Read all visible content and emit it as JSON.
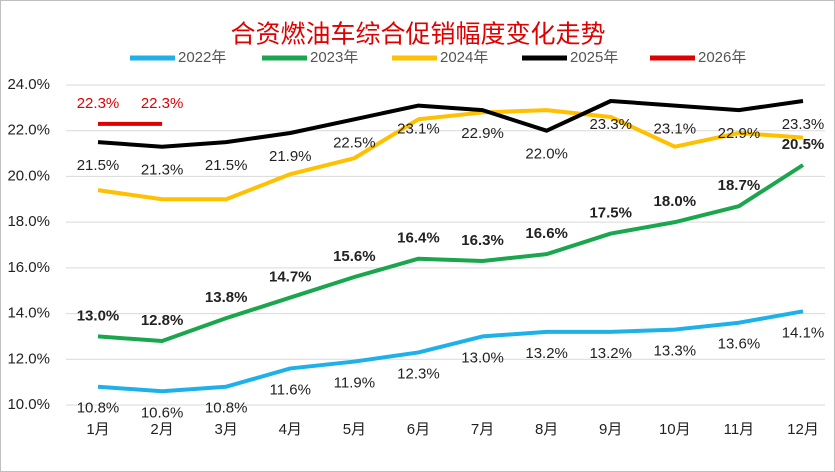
{
  "chart_data": {
    "type": "line",
    "title": "合资燃油车综合促销幅度变化走势",
    "categories": [
      "1月",
      "2月",
      "3月",
      "4月",
      "5月",
      "6月",
      "7月",
      "8月",
      "9月",
      "10月",
      "11月",
      "12月"
    ],
    "ylim": [
      10,
      24
    ],
    "yticks": [
      {
        "value": 10,
        "label": "10.0%"
      },
      {
        "value": 12,
        "label": "12.0%"
      },
      {
        "value": 14,
        "label": "14.0%"
      },
      {
        "value": 16,
        "label": "16.0%"
      },
      {
        "value": 18,
        "label": "18.0%"
      },
      {
        "value": 20,
        "label": "20.0%"
      },
      {
        "value": 22,
        "label": "22.0%"
      },
      {
        "value": 24,
        "label": "24.0%"
      }
    ],
    "grid": true,
    "legend": "top",
    "series": [
      {
        "name": "2022年",
        "color": "#1eb1e9",
        "values": [
          10.8,
          10.6,
          10.8,
          11.6,
          11.9,
          12.3,
          13.0,
          13.2,
          13.2,
          13.3,
          13.6,
          14.1
        ],
        "value_labels": [
          "10.8%",
          "10.6%",
          "10.8%",
          "11.6%",
          "11.9%",
          "12.3%",
          "13.0%",
          "13.2%",
          "13.2%",
          "13.3%",
          "13.6%",
          "14.1%"
        ]
      },
      {
        "name": "2023年",
        "color": "#1aa64d",
        "values": [
          13.0,
          12.8,
          13.8,
          14.7,
          15.6,
          16.4,
          16.3,
          16.6,
          17.5,
          18.0,
          18.7,
          20.5
        ],
        "value_labels": [
          "13.0%",
          "12.8%",
          "13.8%",
          "14.7%",
          "15.6%",
          "16.4%",
          "16.3%",
          "16.6%",
          "17.5%",
          "18.0%",
          "18.7%",
          "20.5%"
        ]
      },
      {
        "name": "2024年",
        "color": "#ffc000",
        "values": [
          19.4,
          19.0,
          19.0,
          20.1,
          20.8,
          22.5,
          22.8,
          22.9,
          22.6,
          21.3,
          21.9,
          21.7
        ]
      },
      {
        "name": "2025年",
        "color": "#000000",
        "values": [
          21.5,
          21.3,
          21.5,
          21.9,
          22.5,
          23.1,
          22.9,
          22.0,
          23.3,
          23.1,
          22.9,
          23.3
        ],
        "value_labels": [
          "21.5%",
          "21.3%",
          "21.5%",
          "21.9%",
          "22.5%",
          "23.1%",
          "22.9%",
          "22.0%",
          "23.3%",
          "23.1%",
          "22.9%",
          "23.3%"
        ]
      },
      {
        "name": "2026年",
        "color": "#e00000",
        "values": [
          22.3,
          22.3,
          null,
          null,
          null,
          null,
          null,
          null,
          null,
          null,
          null,
          null
        ],
        "value_labels": [
          "22.3%",
          "22.3%",
          null,
          null,
          null,
          null,
          null,
          null,
          null,
          null,
          null,
          null
        ]
      }
    ]
  }
}
